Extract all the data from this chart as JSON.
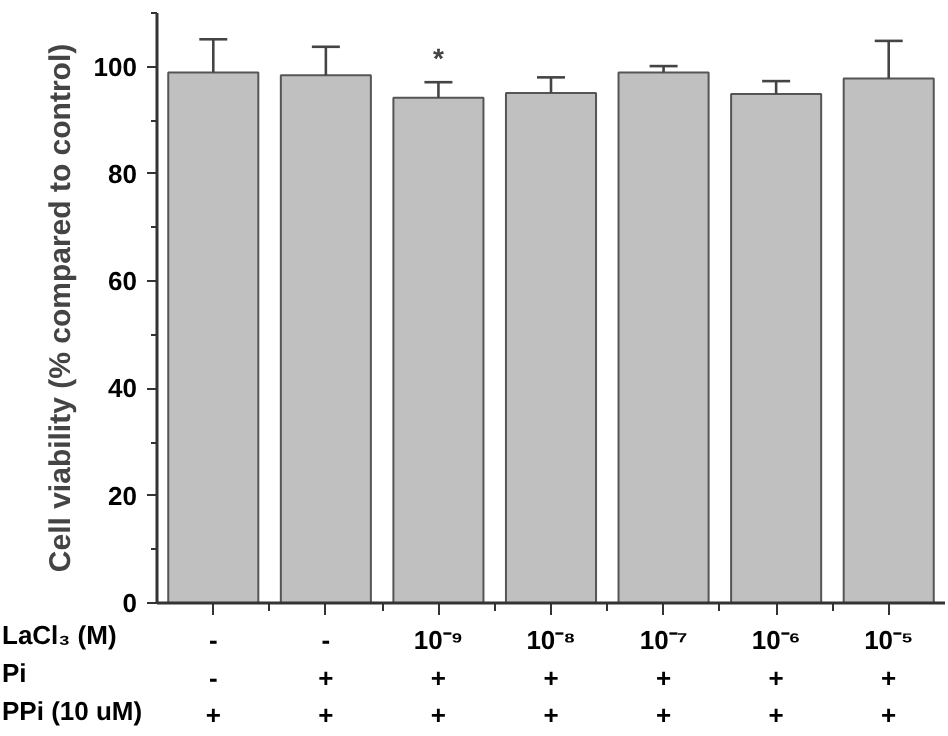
{
  "chart_data": {
    "type": "bar",
    "ylabel": "Cell viability (% compared to control)",
    "categories": [
      "-\n-\n+",
      "-\n+\n+",
      "10⁻⁹\n+\n+",
      "10⁻⁸\n+\n+",
      "10⁻⁷\n+\n+",
      "10⁻⁶\n+\n+",
      "10⁻⁵\n+\n+"
    ],
    "values": [
      98.9,
      98.4,
      94.2,
      95.1,
      98.9,
      94.9,
      97.8
    ],
    "errors": [
      [
        98.9,
        105.1
      ],
      [
        98.4,
        103.7
      ],
      [
        94.2,
        97.1
      ],
      [
        95.1,
        98.0
      ],
      [
        98.9,
        100.1
      ],
      [
        94.9,
        97.3
      ],
      [
        97.8,
        104.8
      ]
    ],
    "color": "#c0c0c0",
    "ylim": [
      0,
      110
    ],
    "yticks": [
      0,
      20,
      40,
      60,
      80,
      100
    ],
    "grid": false,
    "annotations": [
      "LaCl₃ (M)\nPi\nPPi (10 uM)",
      {
        "text": "*",
        "x": "10⁻⁹\n+\n+",
        "y": 97.1
      }
    ]
  }
}
